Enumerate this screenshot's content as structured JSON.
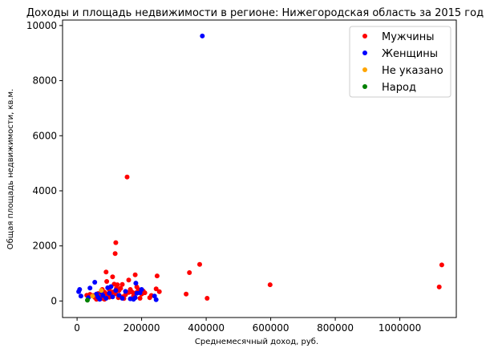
{
  "chart_data": {
    "type": "scatter",
    "title": "Доходы и площадь недвижимости в регионе: Нижегородская область за 2015 год",
    "xlabel": "Среднемесячный доход, руб.",
    "ylabel": "Общая площадь недвижимости, кв.м.",
    "xlim": [
      -45000,
      1175000
    ],
    "ylim": [
      -600,
      10200
    ],
    "xticks": [
      0,
      200000,
      400000,
      600000,
      800000,
      1000000
    ],
    "yticks": [
      0,
      2000,
      4000,
      6000,
      8000,
      10000
    ],
    "grid": false,
    "legend_position": "top-right",
    "series": [
      {
        "name": "Мужчины",
        "color": "#ff0000",
        "points": [
          [
            1130000,
            1310
          ],
          [
            1122000,
            510
          ],
          [
            598000,
            590
          ],
          [
            403000,
            100
          ],
          [
            380000,
            1330
          ],
          [
            348000,
            1030
          ],
          [
            338000,
            250
          ],
          [
            255000,
            340
          ],
          [
            248000,
            910
          ],
          [
            245000,
            440
          ],
          [
            155000,
            4500
          ],
          [
            120000,
            2120
          ],
          [
            118000,
            1720
          ],
          [
            90000,
            1050
          ],
          [
            92000,
            710
          ],
          [
            110000,
            880
          ],
          [
            115000,
            610
          ],
          [
            125000,
            590
          ],
          [
            135000,
            460
          ],
          [
            140000,
            600
          ],
          [
            160000,
            760
          ],
          [
            180000,
            950
          ],
          [
            185000,
            510
          ],
          [
            170000,
            330
          ],
          [
            190000,
            420
          ],
          [
            200000,
            250
          ],
          [
            210000,
            300
          ],
          [
            225000,
            120
          ],
          [
            230000,
            200
          ],
          [
            150000,
            230
          ],
          [
            160000,
            310
          ],
          [
            130000,
            380
          ],
          [
            100000,
            400
          ],
          [
            105000,
            210
          ],
          [
            95000,
            150
          ],
          [
            85000,
            320
          ],
          [
            80000,
            110
          ],
          [
            75000,
            90
          ],
          [
            70000,
            230
          ],
          [
            60000,
            60
          ],
          [
            65000,
            270
          ],
          [
            55000,
            130
          ],
          [
            50000,
            200
          ],
          [
            40000,
            240
          ],
          [
            30000,
            210
          ],
          [
            140000,
            150
          ],
          [
            145000,
            90
          ],
          [
            175000,
            180
          ],
          [
            195000,
            100
          ],
          [
            120000,
            260
          ],
          [
            112000,
            330
          ],
          [
            128000,
            120
          ],
          [
            85000,
            60
          ],
          [
            90000,
            260
          ],
          [
            100000,
            140
          ],
          [
            165000,
            420
          ],
          [
            182000,
            300
          ],
          [
            205000,
            360
          ],
          [
            122000,
            460
          ],
          [
            78000,
            420
          ]
        ]
      },
      {
        "name": "Женщины",
        "color": "#0000ff",
        "points": [
          [
            388000,
            9620
          ],
          [
            8000,
            420
          ],
          [
            5000,
            340
          ],
          [
            12000,
            180
          ],
          [
            35000,
            120
          ],
          [
            40000,
            470
          ],
          [
            55000,
            680
          ],
          [
            60000,
            250
          ],
          [
            65000,
            140
          ],
          [
            75000,
            330
          ],
          [
            80000,
            200
          ],
          [
            95000,
            480
          ],
          [
            100000,
            280
          ],
          [
            110000,
            150
          ],
          [
            130000,
            210
          ],
          [
            150000,
            350
          ],
          [
            165000,
            80
          ],
          [
            175000,
            60
          ],
          [
            180000,
            120
          ],
          [
            182000,
            650
          ],
          [
            185000,
            280
          ],
          [
            195000,
            300
          ],
          [
            240000,
            180
          ],
          [
            245000,
            50
          ],
          [
            120000,
            380
          ],
          [
            140000,
            100
          ],
          [
            105000,
            520
          ],
          [
            90000,
            100
          ],
          [
            70000,
            60
          ],
          [
            200000,
            420
          ]
        ]
      },
      {
        "name": "Не указано",
        "color": "#ffa500",
        "points": [
          [
            75000,
            380
          ],
          [
            48000,
            180
          ]
        ]
      },
      {
        "name": "Народ",
        "color": "#008000",
        "points": [
          [
            32000,
            30
          ]
        ]
      }
    ]
  }
}
